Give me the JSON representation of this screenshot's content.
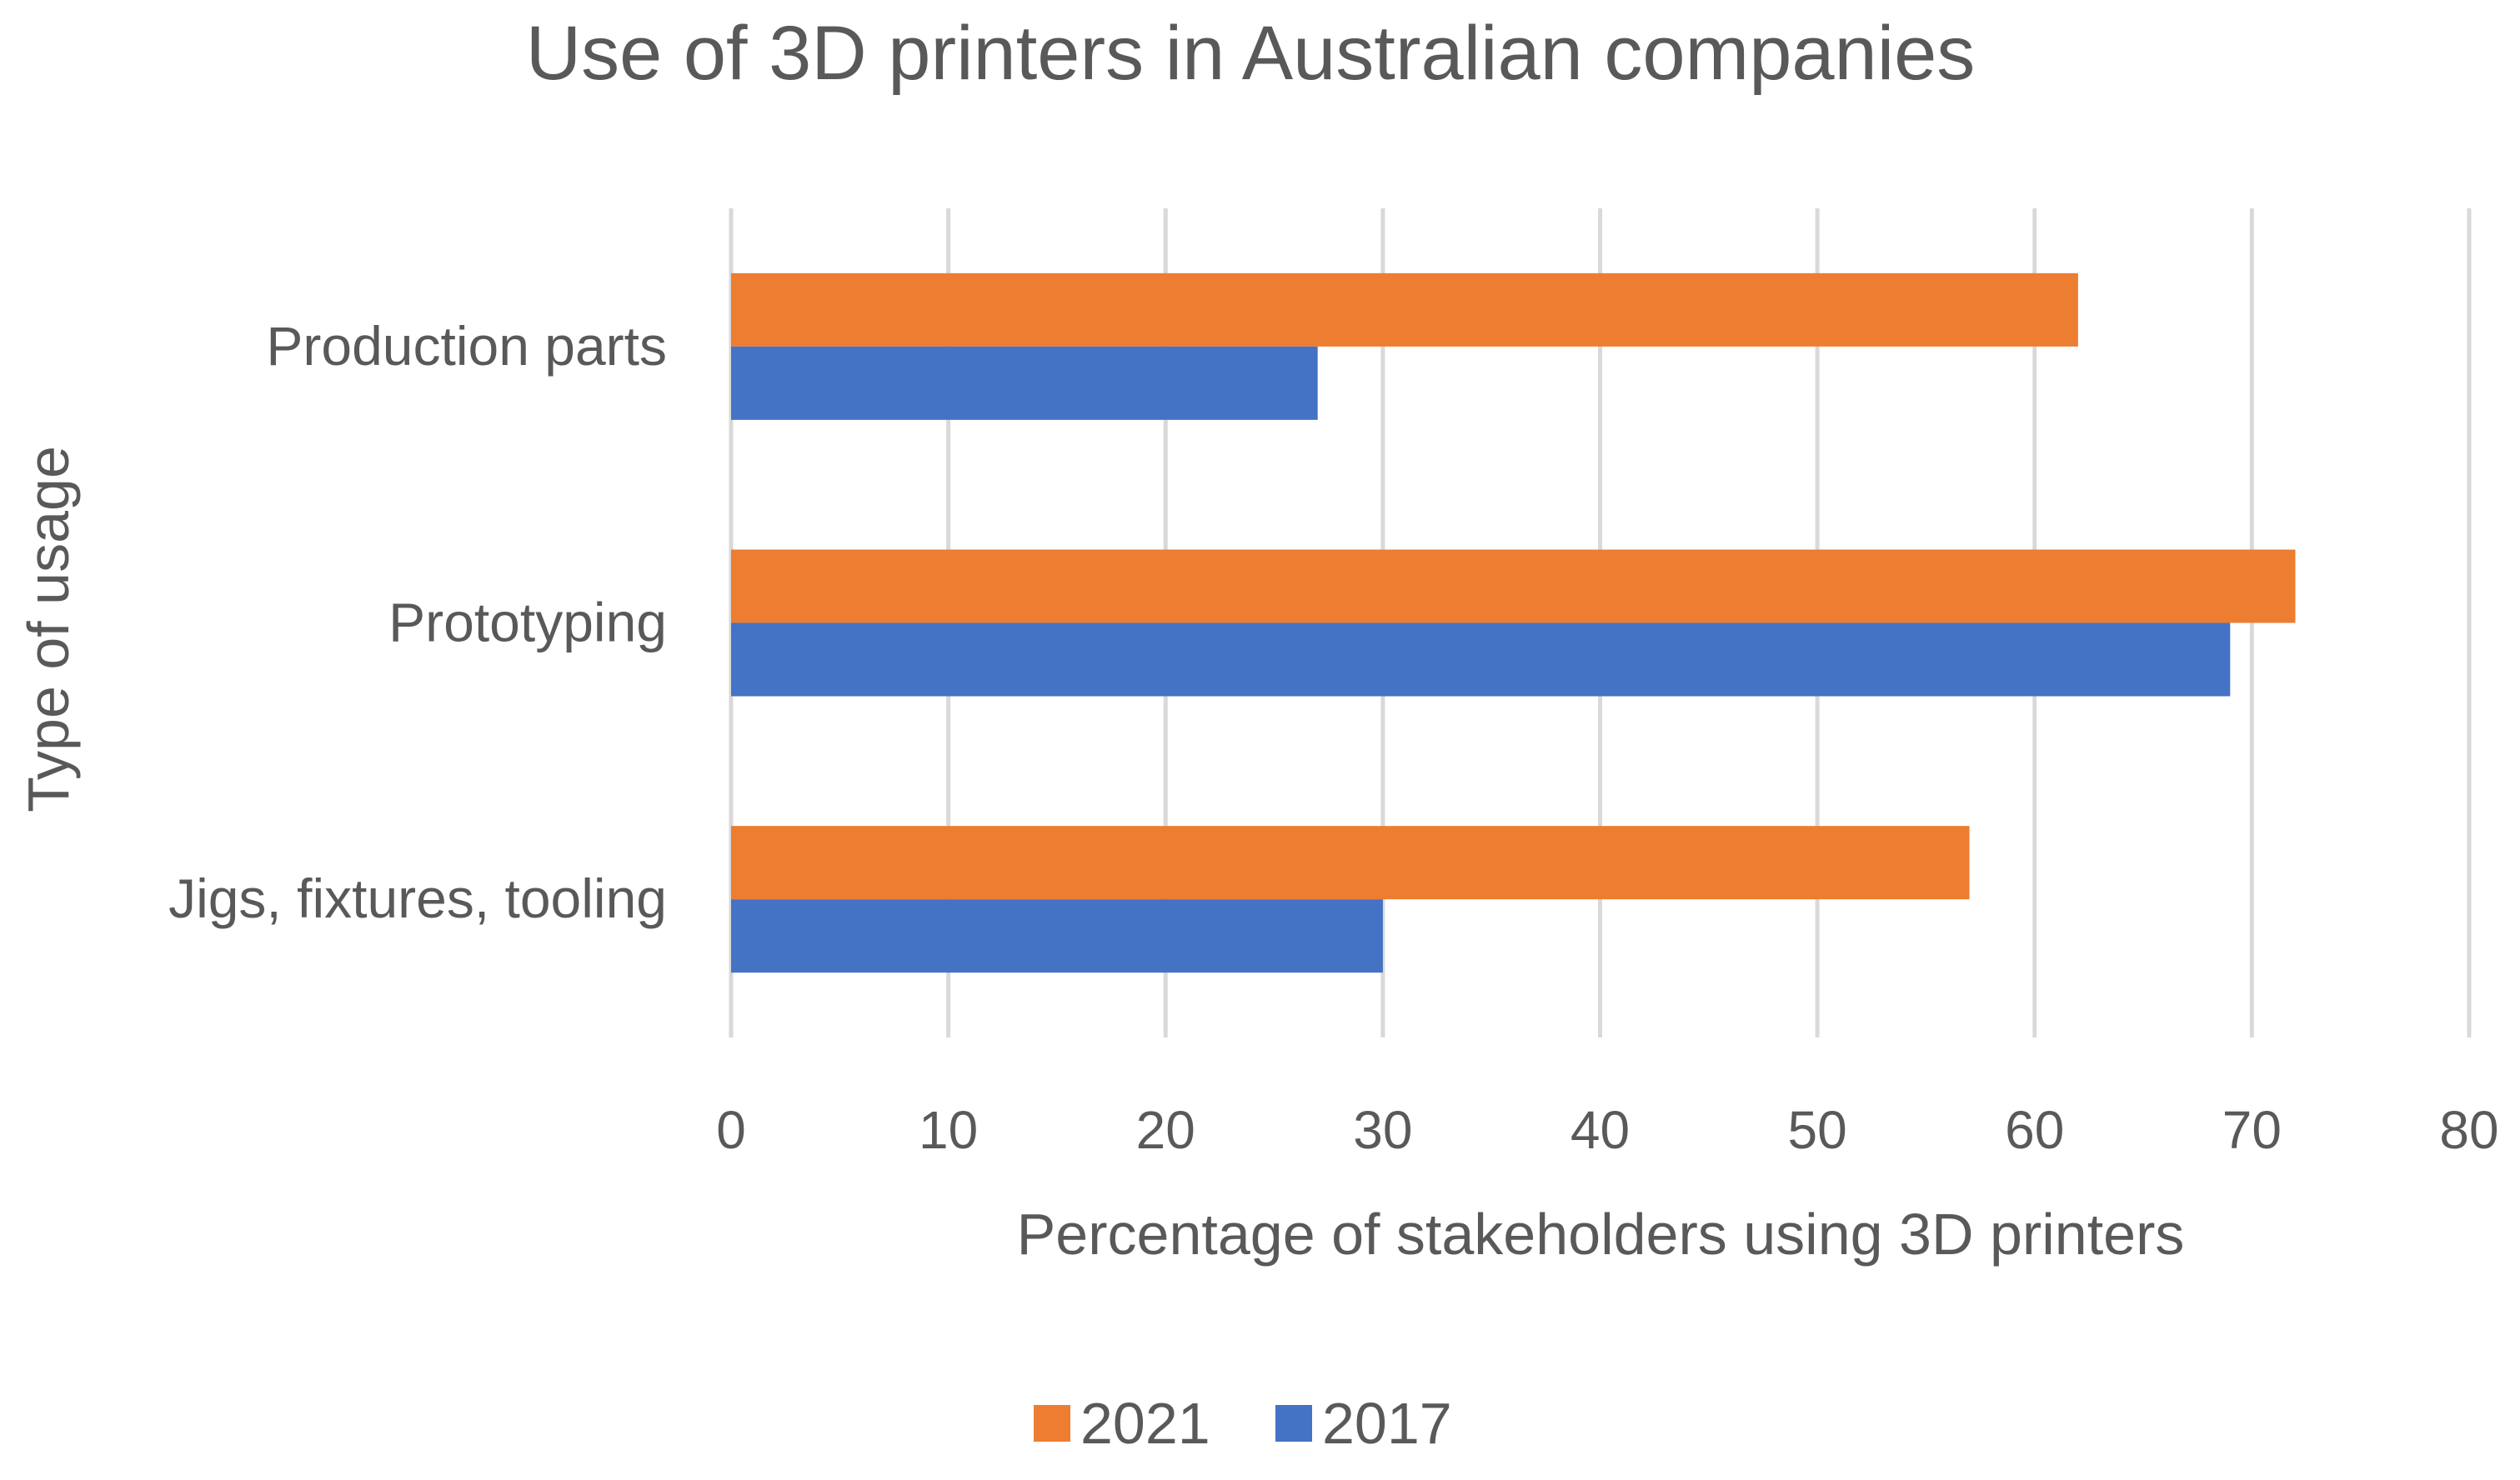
{
  "chart_data": {
    "type": "bar",
    "orientation": "horizontal",
    "title": "Use of 3D printers in Australian companies",
    "xlabel": "Percentage of stakeholders using 3D printers",
    "ylabel": "Type of usage",
    "categories": [
      "Production parts",
      "Prototyping",
      "Jigs, fixtures, tooling"
    ],
    "series": [
      {
        "name": "2021",
        "color": "#ED7D31",
        "values": [
          62,
          72,
          57
        ]
      },
      {
        "name": "2017",
        "color": "#4472C4",
        "values": [
          27,
          69,
          30
        ]
      }
    ],
    "xlim": [
      0,
      80
    ],
    "xticks": [
      0,
      10,
      20,
      30,
      40,
      50,
      60,
      70,
      80
    ],
    "grid": true,
    "gridlines": "vertical",
    "legend": "bottom-center"
  },
  "colors": {
    "text": "#595959",
    "grid": "#D9D9D9",
    "background": "#FFFFFF"
  }
}
